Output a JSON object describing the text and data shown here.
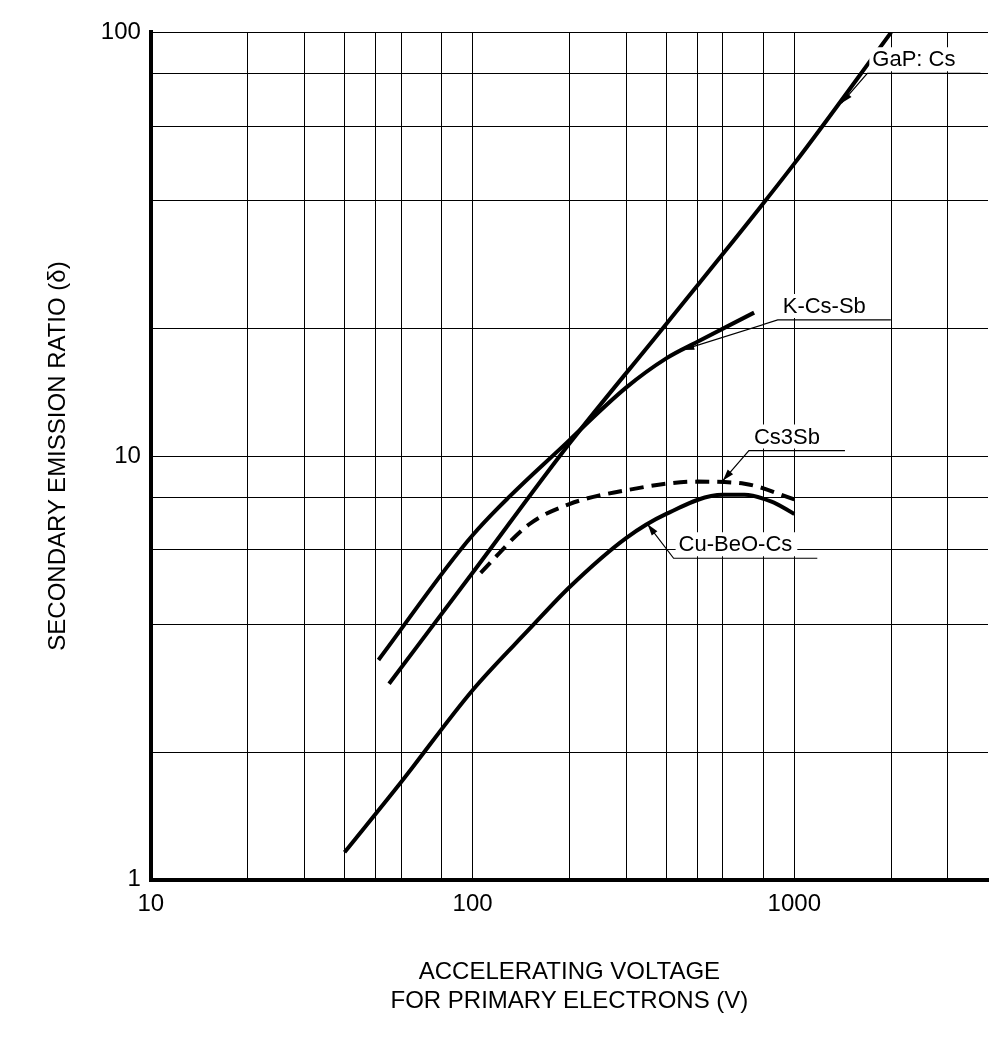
{
  "chart_data": {
    "type": "line",
    "xlabel": "ACCELERATING VOLTAGE\nFOR PRIMARY ELECTRONS (V)",
    "ylabel": "SECONDARY EMISSION RATIO (δ)",
    "log": "xy",
    "grid": true,
    "legend": false,
    "marker": "none",
    "xlim": [
      10,
      4000
    ],
    "ylim": [
      1,
      100
    ],
    "xticks": [
      10,
      {
        "value": 20,
        "label": null
      },
      {
        "value": 30,
        "label": null
      },
      {
        "value": 40,
        "label": null
      },
      {
        "value": 50,
        "label": null
      },
      {
        "value": 60,
        "label": null
      },
      {
        "value": 80,
        "label": null
      },
      100,
      {
        "value": 200,
        "label": null
      },
      {
        "value": 300,
        "label": null
      },
      {
        "value": 400,
        "label": null
      },
      {
        "value": 500,
        "label": null
      },
      {
        "value": 600,
        "label": null
      },
      {
        "value": 800,
        "label": null
      },
      1000,
      {
        "value": 2000,
        "label": null
      },
      {
        "value": 3000,
        "label": null
      }
    ],
    "yticks": [
      1,
      {
        "value": 2,
        "label": null
      },
      {
        "value": 4,
        "label": null
      },
      {
        "value": 6,
        "label": null
      },
      {
        "value": 8,
        "label": null
      },
      10,
      {
        "value": 20,
        "label": null
      },
      {
        "value": 40,
        "label": null
      },
      {
        "value": 60,
        "label": null
      },
      {
        "value": 80,
        "label": null
      },
      100
    ],
    "series": [
      {
        "color": "#000000",
        "line_style": "solid",
        "x": [
          55,
          100,
          200,
          400,
          1000,
          2000
        ],
        "values": [
          2.9,
          5.3,
          10.7,
          20.5,
          49,
          100
        ]
      },
      {
        "color": "#000000",
        "line_style": "solid",
        "x": [
          51,
          100,
          200,
          300,
          400,
          500,
          750
        ],
        "values": [
          3.3,
          6.5,
          10.9,
          14.5,
          17,
          18.6,
          21.8
        ]
      },
      {
        "color": "#000000",
        "line_style": "dashed",
        "x": [
          106,
          150,
          200,
          300,
          500,
          700,
          1000
        ],
        "values": [
          5.3,
          6.9,
          7.7,
          8.3,
          8.7,
          8.6,
          7.9
        ]
      },
      {
        "color": "#000000",
        "line_style": "solid",
        "x": [
          40,
          60,
          100,
          150,
          200,
          300,
          400,
          600,
          700,
          850,
          1000
        ],
        "values": [
          1.16,
          1.7,
          2.8,
          3.9,
          4.9,
          6.4,
          7.3,
          8.1,
          8.1,
          7.8,
          7.3
        ]
      }
    ],
    "annotations": [
      {
        "text": "GaP: Cs",
        "x": 1400,
        "y": 68
      },
      {
        "text": "K-Cs-Sb",
        "x": 450,
        "y": 17.8
      },
      {
        "text": "Cs3Sb",
        "x": 600,
        "y": 8.75
      },
      {
        "text": "Cu-BeO-Cs",
        "x": 350,
        "y": 6.9
      }
    ]
  }
}
